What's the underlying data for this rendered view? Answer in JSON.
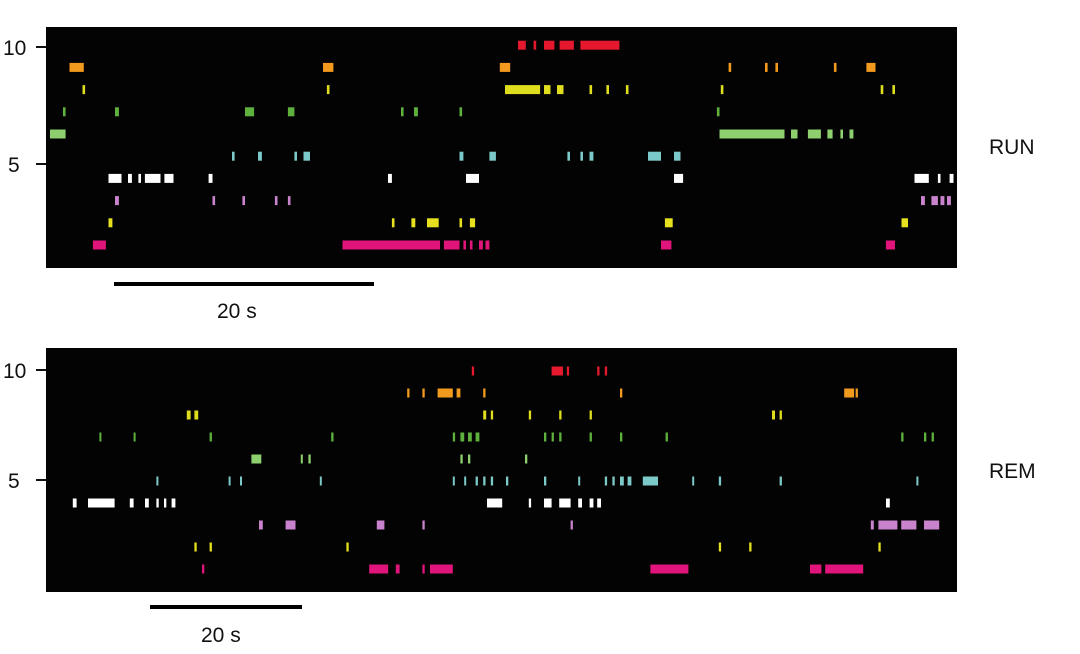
{
  "colors": {
    "background": "#030303",
    "cells": [
      "#e0147a",
      "#e6e01e",
      "#c982cc",
      "#ffffff",
      "#7cc9c9",
      "#8ed06e",
      "#5fb13e",
      "#dede1e",
      "#f29a1e",
      "#e5182e"
    ]
  },
  "chart_data": [
    {
      "type": "raster",
      "label": "RUN",
      "y_ticks": [
        5,
        10
      ],
      "y_range": [
        0,
        10
      ],
      "scale_bar": {
        "label": "20 s",
        "seconds": 20
      },
      "x_range_s": [
        0,
        70
      ],
      "cells": [
        {
          "cell": 1,
          "events": [
            [
              3.3,
              4.3
            ],
            [
              22.5,
              30
            ],
            [
              30.3,
              31.5
            ],
            [
              31.8,
              32
            ],
            [
              32.3,
              32.5
            ],
            [
              33,
              33.3
            ],
            [
              33.5,
              33.8
            ],
            [
              47,
              47.8
            ],
            [
              64.3,
              65
            ]
          ]
        },
        {
          "cell": 2,
          "events": [
            [
              4.5,
              4.8
            ],
            [
              26.3,
              26.5
            ],
            [
              27.8,
              28.1
            ],
            [
              29,
              29.9
            ],
            [
              31.5,
              31.7
            ],
            [
              32.3,
              32.7
            ],
            [
              47.3,
              47.9
            ],
            [
              65.5,
              66
            ]
          ]
        },
        {
          "cell": 3,
          "events": [
            [
              5,
              5.3
            ],
            [
              12.5,
              12.7
            ],
            [
              14.8,
              15
            ],
            [
              17.3,
              17.5
            ],
            [
              18.3,
              18.5
            ],
            [
              67,
              67.3
            ],
            [
              67.8,
              68.3
            ],
            [
              68.5,
              68.8
            ],
            [
              69,
              69.3
            ]
          ]
        },
        {
          "cell": 4,
          "events": [
            [
              4.5,
              5.5
            ],
            [
              6,
              6.3
            ],
            [
              6.8,
              7
            ],
            [
              7.3,
              8.5
            ],
            [
              8.8,
              9.5
            ],
            [
              12.2,
              12.5
            ],
            [
              26,
              26.3
            ],
            [
              32,
              33
            ],
            [
              48,
              48.7
            ],
            [
              66.5,
              67.6
            ],
            [
              68.3,
              68.5
            ],
            [
              69.2,
              69.5
            ]
          ]
        },
        {
          "cell": 5,
          "events": [
            [
              14,
              14.2
            ],
            [
              16,
              16.3
            ],
            [
              18.8,
              19
            ],
            [
              19.5,
              20
            ],
            [
              31.5,
              31.8
            ],
            [
              33.8,
              34.3
            ],
            [
              39.8,
              40
            ],
            [
              40.8,
              41
            ],
            [
              41.5,
              41.8
            ],
            [
              46,
              47
            ],
            [
              48,
              48.5
            ]
          ]
        },
        {
          "cell": 6,
          "events": [
            [
              0,
              1.2
            ],
            [
              51.5,
              56.5
            ],
            [
              57,
              57.5
            ],
            [
              58.3,
              59.3
            ],
            [
              59.8,
              60.2
            ],
            [
              60.8,
              61
            ],
            [
              61.5,
              61.8
            ]
          ]
        },
        {
          "cell": 7,
          "events": [
            [
              1,
              1.2
            ],
            [
              5,
              5.3
            ],
            [
              15,
              15.7
            ],
            [
              18.3,
              18.8
            ],
            [
              27,
              27.2
            ],
            [
              28,
              28.3
            ],
            [
              31.5,
              31.7
            ],
            [
              51.3,
              51.5
            ]
          ]
        },
        {
          "cell": 8,
          "events": [
            [
              2.5,
              2.7
            ],
            [
              21.3,
              21.5
            ],
            [
              35,
              37.7
            ],
            [
              38,
              38.5
            ],
            [
              39,
              39.5
            ],
            [
              41.5,
              41.7
            ],
            [
              42.8,
              43
            ],
            [
              44.3,
              44.5
            ],
            [
              51.6,
              51.8
            ],
            [
              63.9,
              64.1
            ],
            [
              64.8,
              65
            ]
          ]
        },
        {
          "cell": 9,
          "events": [
            [
              1.5,
              2.6
            ],
            [
              21,
              21.8
            ],
            [
              34.6,
              35.4
            ],
            [
              52.2,
              52.4
            ],
            [
              55,
              55.2
            ],
            [
              55.8,
              56
            ],
            [
              60.3,
              60.5
            ],
            [
              62.8,
              63.5
            ]
          ]
        },
        {
          "cell": 10,
          "events": [
            [
              36,
              36.6
            ],
            [
              37.2,
              37.4
            ],
            [
              38,
              38.8
            ],
            [
              39.2,
              40.3
            ],
            [
              40.8,
              43.8
            ]
          ]
        }
      ]
    },
    {
      "type": "raster",
      "label": "REM",
      "y_ticks": [
        5,
        10
      ],
      "y_range": [
        0,
        10
      ],
      "scale_bar": {
        "label": "20 s",
        "seconds": 20
      },
      "x_range_s": [
        0,
        120
      ],
      "cells": [
        {
          "cell": 1,
          "events": [
            [
              20,
              20.3
            ],
            [
              42,
              44.5
            ],
            [
              45.5,
              46
            ],
            [
              49,
              49.3
            ],
            [
              50,
              53
            ],
            [
              79,
              84
            ],
            [
              100,
              101.5
            ],
            [
              102,
              107
            ]
          ]
        },
        {
          "cell": 2,
          "events": [
            [
              19,
              19.3
            ],
            [
              21,
              21.3
            ],
            [
              39,
              39.3
            ],
            [
              88,
              88.3
            ],
            [
              92,
              92.3
            ],
            [
              109,
              109.3
            ]
          ]
        },
        {
          "cell": 3,
          "events": [
            [
              27.5,
              28
            ],
            [
              31,
              32.3
            ],
            [
              43,
              44
            ],
            [
              49,
              49.3
            ],
            [
              68.5,
              68.8
            ],
            [
              108,
              108.4
            ],
            [
              109,
              111.5
            ],
            [
              112,
              114
            ],
            [
              115,
              117
            ]
          ]
        },
        {
          "cell": 4,
          "events": [
            [
              3,
              3.5
            ],
            [
              5,
              8.5
            ],
            [
              10.5,
              11
            ],
            [
              12.5,
              13
            ],
            [
              14,
              14.3
            ],
            [
              15,
              15.3
            ],
            [
              16,
              16.5
            ],
            [
              57.5,
              59.5
            ],
            [
              63,
              63.3
            ],
            [
              65,
              66
            ],
            [
              67,
              68.5
            ],
            [
              69.5,
              70
            ],
            [
              71,
              71.5
            ],
            [
              72,
              72.5
            ],
            [
              110,
              110.5
            ]
          ]
        },
        {
          "cell": 5,
          "events": [
            [
              14,
              14.2
            ],
            [
              23.5,
              23.7
            ],
            [
              25,
              25.2
            ],
            [
              35.5,
              35.7
            ],
            [
              53,
              53.2
            ],
            [
              54.5,
              54.7
            ],
            [
              56,
              56.3
            ],
            [
              57,
              57.3
            ],
            [
              58,
              58.3
            ],
            [
              60,
              60.3
            ],
            [
              65,
              65.3
            ],
            [
              69.5,
              69.7
            ],
            [
              73,
              73.3
            ],
            [
              74,
              74.3
            ],
            [
              75,
              75.5
            ],
            [
              76,
              76.5
            ],
            [
              78,
              80
            ],
            [
              84.5,
              84.7
            ],
            [
              88,
              88.3
            ],
            [
              96,
              96.3
            ],
            [
              114,
              114.2
            ]
          ]
        },
        {
          "cell": 6,
          "events": [
            [
              26.5,
              27.8
            ],
            [
              33,
              33.2
            ],
            [
              34,
              34.3
            ],
            [
              54,
              54.3
            ],
            [
              55,
              55.3
            ],
            [
              62.5,
              62.8
            ]
          ]
        },
        {
          "cell": 7,
          "events": [
            [
              6.5,
              6.7
            ],
            [
              11,
              11.2
            ],
            [
              21,
              21.3
            ],
            [
              37,
              37.3
            ],
            [
              53,
              53.3
            ],
            [
              54,
              54.5
            ],
            [
              55,
              55.5
            ],
            [
              56,
              56.5
            ],
            [
              65,
              65.3
            ],
            [
              66,
              66.3
            ],
            [
              67,
              67.3
            ],
            [
              71,
              71.3
            ],
            [
              75,
              75.3
            ],
            [
              81,
              81.3
            ],
            [
              112,
              112.3
            ],
            [
              115,
              115.3
            ],
            [
              116,
              116.3
            ]
          ]
        },
        {
          "cell": 8,
          "events": [
            [
              18,
              18.5
            ],
            [
              19,
              19.5
            ],
            [
              57,
              57.4
            ],
            [
              58,
              58.3
            ],
            [
              63,
              63.3
            ],
            [
              67,
              67.3
            ],
            [
              71,
              71.3
            ],
            [
              95,
              95.4
            ],
            [
              96,
              96.3
            ]
          ]
        },
        {
          "cell": 9,
          "events": [
            [
              47,
              47.3
            ],
            [
              49,
              49.3
            ],
            [
              51,
              53
            ],
            [
              53.5,
              54
            ],
            [
              57,
              57.3
            ],
            [
              75,
              75.3
            ],
            [
              104.5,
              105.8
            ],
            [
              106,
              106.3
            ]
          ]
        },
        {
          "cell": 10,
          "events": [
            [
              55.5,
              55.8
            ],
            [
              66,
              67.5
            ],
            [
              68,
              68.3
            ],
            [
              72,
              72.3
            ],
            [
              73,
              73.3
            ]
          ]
        }
      ]
    }
  ]
}
